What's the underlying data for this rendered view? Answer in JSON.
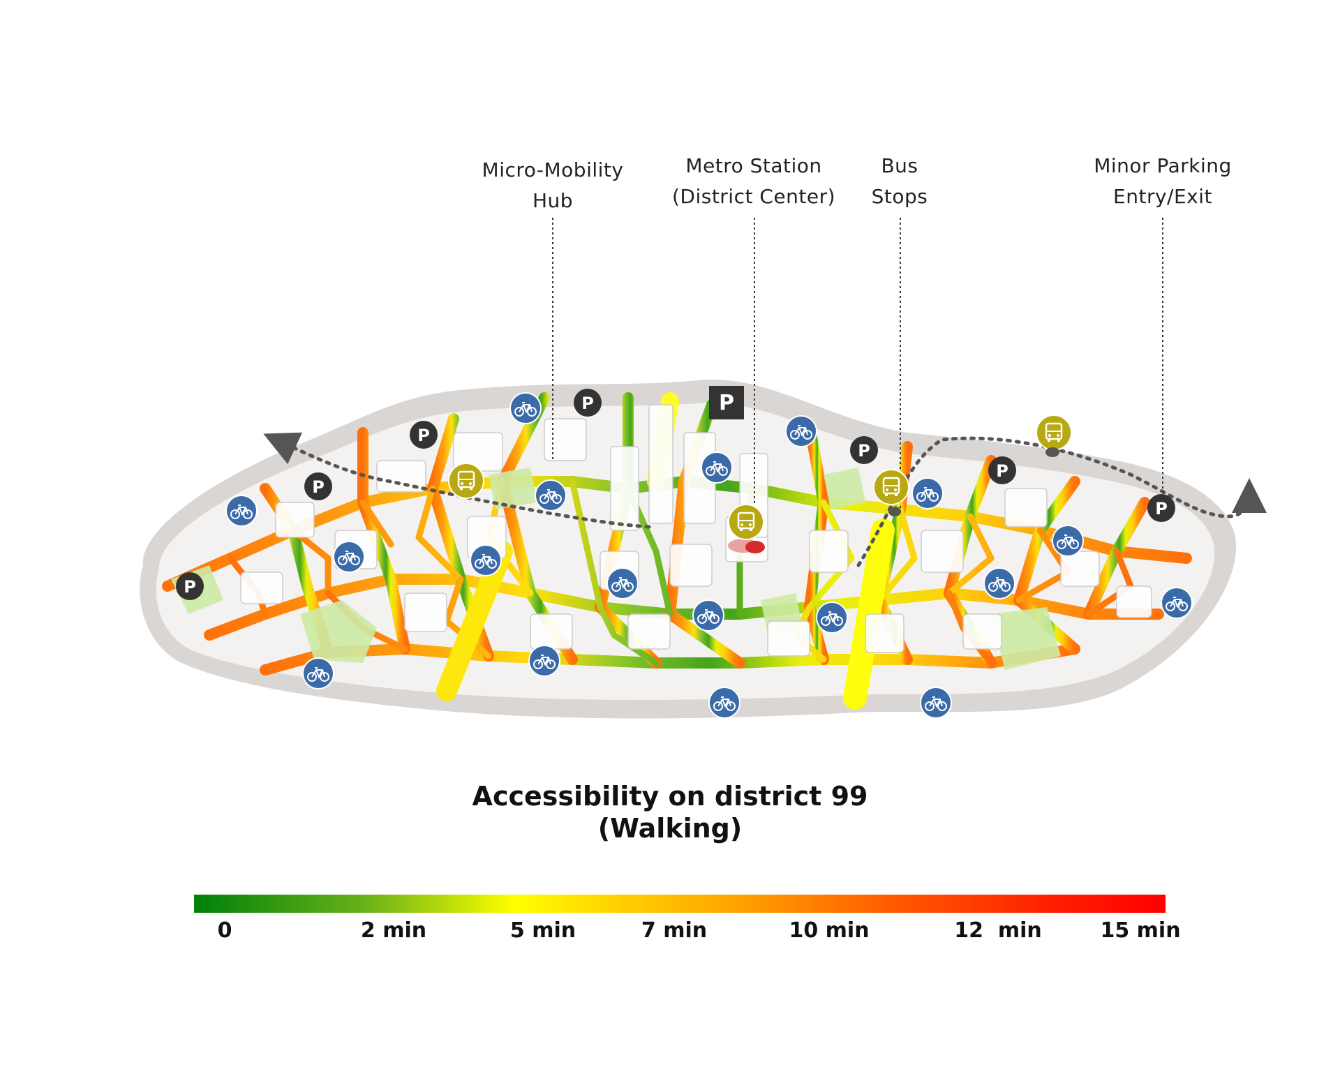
{
  "callouts": [
    {
      "id": "micro",
      "lines": [
        "Micro-Mobility",
        "Hub"
      ]
    },
    {
      "id": "metro",
      "lines": [
        "Metro Station",
        "(District Center)"
      ]
    },
    {
      "id": "bus",
      "lines": [
        "Bus",
        "Stops"
      ]
    },
    {
      "id": "parking",
      "lines": [
        "Minor Parking",
        "Entry/Exit"
      ]
    }
  ],
  "title": {
    "line1": "Accessibility on district 99",
    "line2": "(Walking)"
  },
  "legend": {
    "ticks": [
      "0",
      "2 min",
      "5 min",
      "7 min",
      "10 min",
      "12  min",
      "15 min"
    ],
    "colors": [
      "#00800a",
      "#ffff00",
      "#ff9a00",
      "#ff0000"
    ]
  },
  "icons": {
    "parking_label": "P",
    "bike": "bike-icon",
    "bus": "bus-icon",
    "parking": "parking-icon"
  },
  "colors": {
    "bike": "#3a6aa8",
    "bus": "#b8a812",
    "parking": "#333333",
    "metro": "#d52a2a"
  }
}
